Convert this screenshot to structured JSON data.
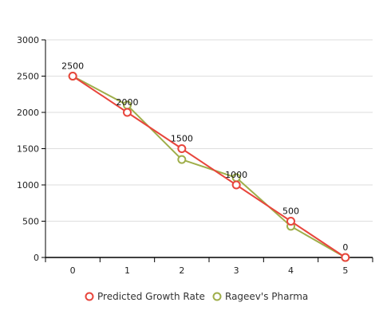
{
  "chart_data": {
    "type": "line",
    "x": [
      0,
      1,
      2,
      3,
      4,
      5
    ],
    "series": [
      {
        "name": "Predicted Growth Rate",
        "color": "#e8453c",
        "values": [
          2500,
          2000,
          1500,
          1000,
          500,
          0
        ]
      },
      {
        "name": "Rageev's Pharma",
        "color": "#9fae4a",
        "values": [
          2500,
          2100,
          1350,
          1100,
          430,
          0
        ]
      }
    ],
    "data_labels": [
      "2500",
      "2000",
      "1500",
      "1000",
      "500",
      "0"
    ],
    "y_ticks": [
      0,
      500,
      1000,
      1500,
      2000,
      2500,
      3000
    ],
    "ylim": [
      0,
      3000
    ],
    "xlim": [
      -0.5,
      5.5
    ],
    "title": "",
    "xlabel": "",
    "ylabel": "",
    "grid": true,
    "legend_position": "bottom"
  }
}
